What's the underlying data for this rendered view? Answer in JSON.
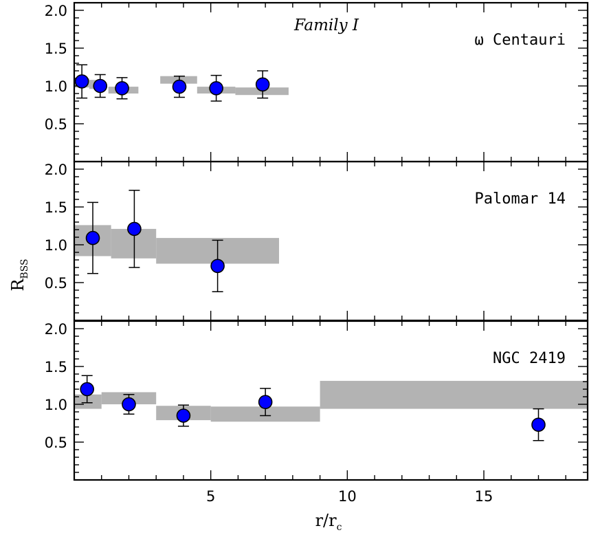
{
  "chart_data": [
    {
      "type": "scatter",
      "panel_label": "ω Centauri",
      "annotation": "Family I",
      "ylabel": "R",
      "ylabel_sub": "BSS",
      "xlim": [
        0,
        18.8
      ],
      "ylim": [
        0,
        2.1
      ],
      "yticks": [
        "0.5",
        "1.0",
        "1.5",
        "2.0"
      ],
      "points": [
        {
          "x": 0.28,
          "y": 1.06,
          "err_low": 0.22,
          "err_high": 0.22
        },
        {
          "x": 0.95,
          "y": 1.0,
          "err_low": 0.15,
          "err_high": 0.15
        },
        {
          "x": 1.75,
          "y": 0.97,
          "err_low": 0.14,
          "err_high": 0.14
        },
        {
          "x": 3.85,
          "y": 0.99,
          "err_low": 0.14,
          "err_high": 0.14
        },
        {
          "x": 5.2,
          "y": 0.97,
          "err_low": 0.17,
          "err_high": 0.17
        },
        {
          "x": 6.9,
          "y": 1.02,
          "err_low": 0.18,
          "err_high": 0.18
        }
      ],
      "bands": [
        {
          "x0": 0.0,
          "x1": 0.55,
          "y0": 0.98,
          "y1": 1.1
        },
        {
          "x0": 0.55,
          "x1": 1.0,
          "y0": 0.96,
          "y1": 1.08
        },
        {
          "x0": 1.25,
          "x1": 2.35,
          "y0": 0.9,
          "y1": 0.99
        },
        {
          "x0": 3.15,
          "x1": 4.5,
          "y0": 1.03,
          "y1": 1.13
        },
        {
          "x0": 4.5,
          "x1": 5.9,
          "y0": 0.9,
          "y1": 0.99
        },
        {
          "x0": 5.9,
          "x1": 7.85,
          "y0": 0.88,
          "y1": 0.98
        }
      ]
    },
    {
      "type": "scatter",
      "panel_label": "Palomar 14",
      "xlim": [
        0,
        18.8
      ],
      "ylim": [
        0,
        2.1
      ],
      "yticks": [
        "0.5",
        "1.0",
        "1.5",
        "2.0"
      ],
      "points": [
        {
          "x": 0.68,
          "y": 1.09,
          "err_low": 0.47,
          "err_high": 0.47
        },
        {
          "x": 2.2,
          "y": 1.21,
          "err_low": 0.51,
          "err_high": 0.51
        },
        {
          "x": 5.25,
          "y": 0.72,
          "err_low": 0.34,
          "err_high": 0.34
        }
      ],
      "bands": [
        {
          "x0": 0.0,
          "x1": 1.35,
          "y0": 0.85,
          "y1": 1.26
        },
        {
          "x0": 1.35,
          "x1": 3.0,
          "y0": 0.82,
          "y1": 1.21
        },
        {
          "x0": 3.0,
          "x1": 7.5,
          "y0": 0.75,
          "y1": 1.09
        }
      ]
    },
    {
      "type": "scatter",
      "panel_label": "NGC 2419",
      "xlabel": "r/r",
      "xlabel_sub": "c",
      "xlim": [
        0,
        18.8
      ],
      "ylim": [
        0,
        2.1
      ],
      "xticks": [
        {
          "value": 5,
          "label": "5"
        },
        {
          "value": 10,
          "label": "10"
        },
        {
          "value": 15,
          "label": "15"
        }
      ],
      "yticks": [
        "0.5",
        "1.0",
        "1.5",
        "2.0"
      ],
      "points": [
        {
          "x": 0.47,
          "y": 1.2,
          "err_low": 0.18,
          "err_high": 0.18
        },
        {
          "x": 2.0,
          "y": 1.0,
          "err_low": 0.13,
          "err_high": 0.13
        },
        {
          "x": 4.0,
          "y": 0.85,
          "err_low": 0.14,
          "err_high": 0.14
        },
        {
          "x": 7.0,
          "y": 1.03,
          "err_low": 0.18,
          "err_high": 0.18
        },
        {
          "x": 17.0,
          "y": 0.73,
          "err_low": 0.21,
          "err_high": 0.21
        }
      ],
      "bands": [
        {
          "x0": 0.0,
          "x1": 1.0,
          "y0": 0.94,
          "y1": 1.13
        },
        {
          "x0": 1.0,
          "x1": 3.0,
          "y0": 1.0,
          "y1": 1.16
        },
        {
          "x0": 3.0,
          "x1": 5.0,
          "y0": 0.79,
          "y1": 0.98
        },
        {
          "x0": 5.0,
          "x1": 9.0,
          "y0": 0.77,
          "y1": 0.97
        },
        {
          "x0": 9.0,
          "x1": 18.8,
          "y0": 0.94,
          "y1": 1.31
        }
      ]
    }
  ],
  "style": {
    "point_fill": "#0000ff",
    "point_stroke": "#000000",
    "band_fill": "#b3b3b3"
  }
}
